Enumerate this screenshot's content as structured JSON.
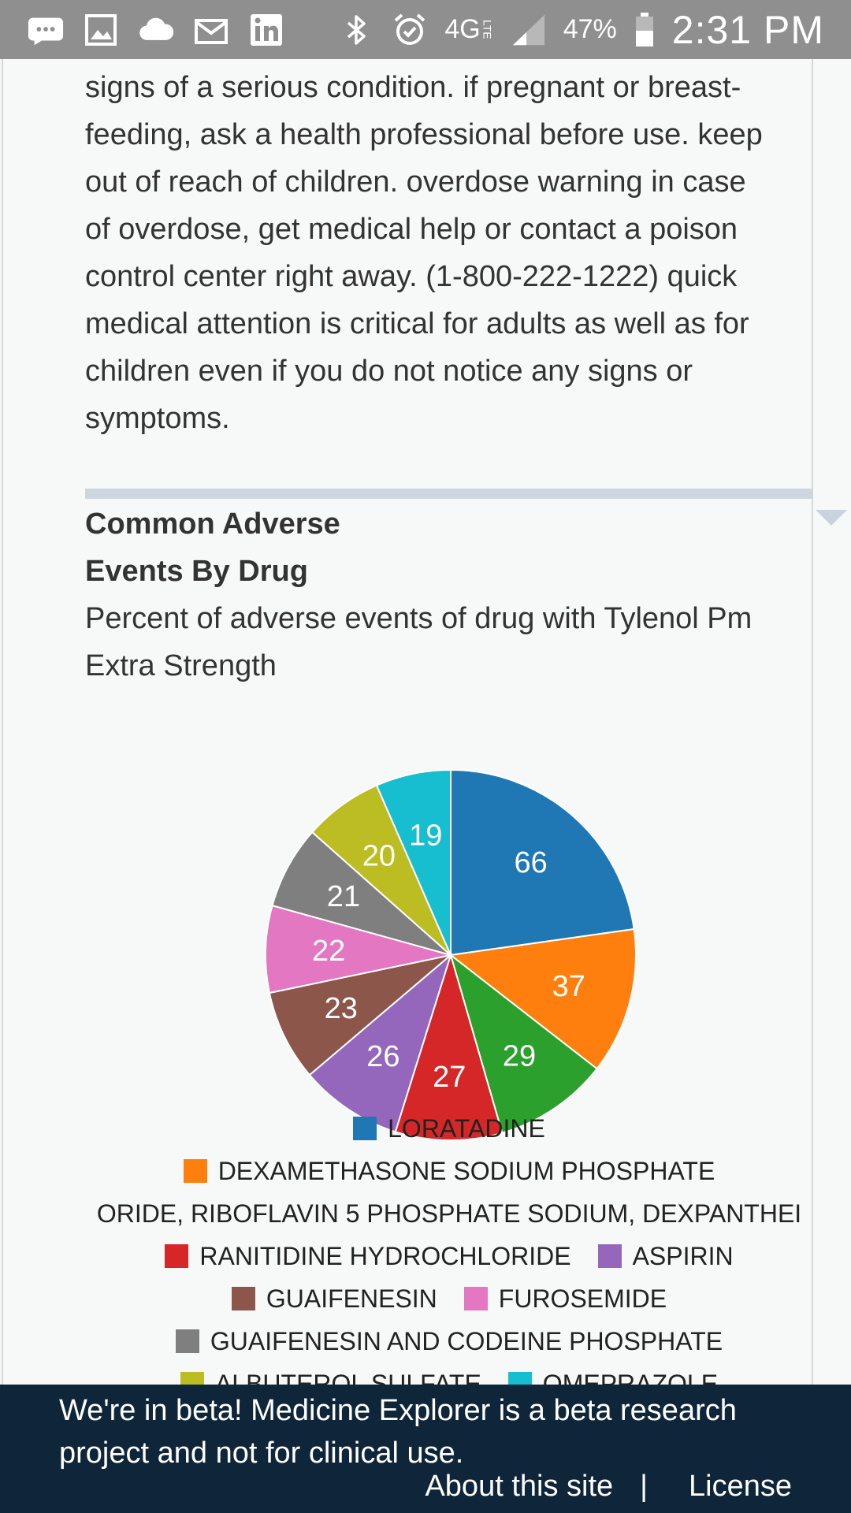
{
  "status_bar": {
    "bluetooth_icon": "bluetooth-icon",
    "alarm_icon": "alarm-icon",
    "network": "4G",
    "network_sub": "LTE",
    "battery_percent": "47%",
    "time": "2:31 PM",
    "notification_icons": [
      "messages-icon",
      "gallery-icon",
      "cloud-icon",
      "email-icon",
      "linkedin-icon"
    ]
  },
  "warning": {
    "text": "signs of a serious condition. if pregnant or breast-feeding, ask a health professional before use. keep out of reach of children. overdose warning in case of overdose, get medical help or contact a poison control center right away. (1-800-222-1222) quick medical attention is critical for adults as well as for children even if you do not notice any signs or symptoms."
  },
  "section": {
    "title": "Common Adverse Events By Drug",
    "subtitle": "Percent of adverse events of drug with Tylenol Pm Extra Strength"
  },
  "chart_data": {
    "type": "pie",
    "categories": [
      "LORATADINE",
      "DEXAMETHASONE SODIUM PHOSPHATE",
      "ORIDE, RIBOFLAVIN 5 PHOSPHATE SODIUM, DEXPANTHEI",
      "RANITIDINE HYDROCHLORIDE",
      "ASPIRIN",
      "GUAIFENESIN",
      "FUROSEMIDE",
      "GUAIFENESIN AND CODEINE PHOSPHATE",
      "ALBUTEROL SULFATE",
      "OMEPRAZOLE"
    ],
    "values": [
      66,
      37,
      29,
      27,
      26,
      23,
      22,
      21,
      20,
      19
    ],
    "colors": [
      "#1f77b4",
      "#ff7f0e",
      "#2ca02c",
      "#d62728",
      "#9467bd",
      "#8c564b",
      "#e377c2",
      "#7f7f7f",
      "#bcbd22",
      "#17becf"
    ],
    "legend_placement": "bottom"
  },
  "banner": {
    "text": "We're in beta! Medicine Explorer is a beta research project and not for clinical use.",
    "about_link": "About this site",
    "separator": "|",
    "license_link": "License"
  }
}
